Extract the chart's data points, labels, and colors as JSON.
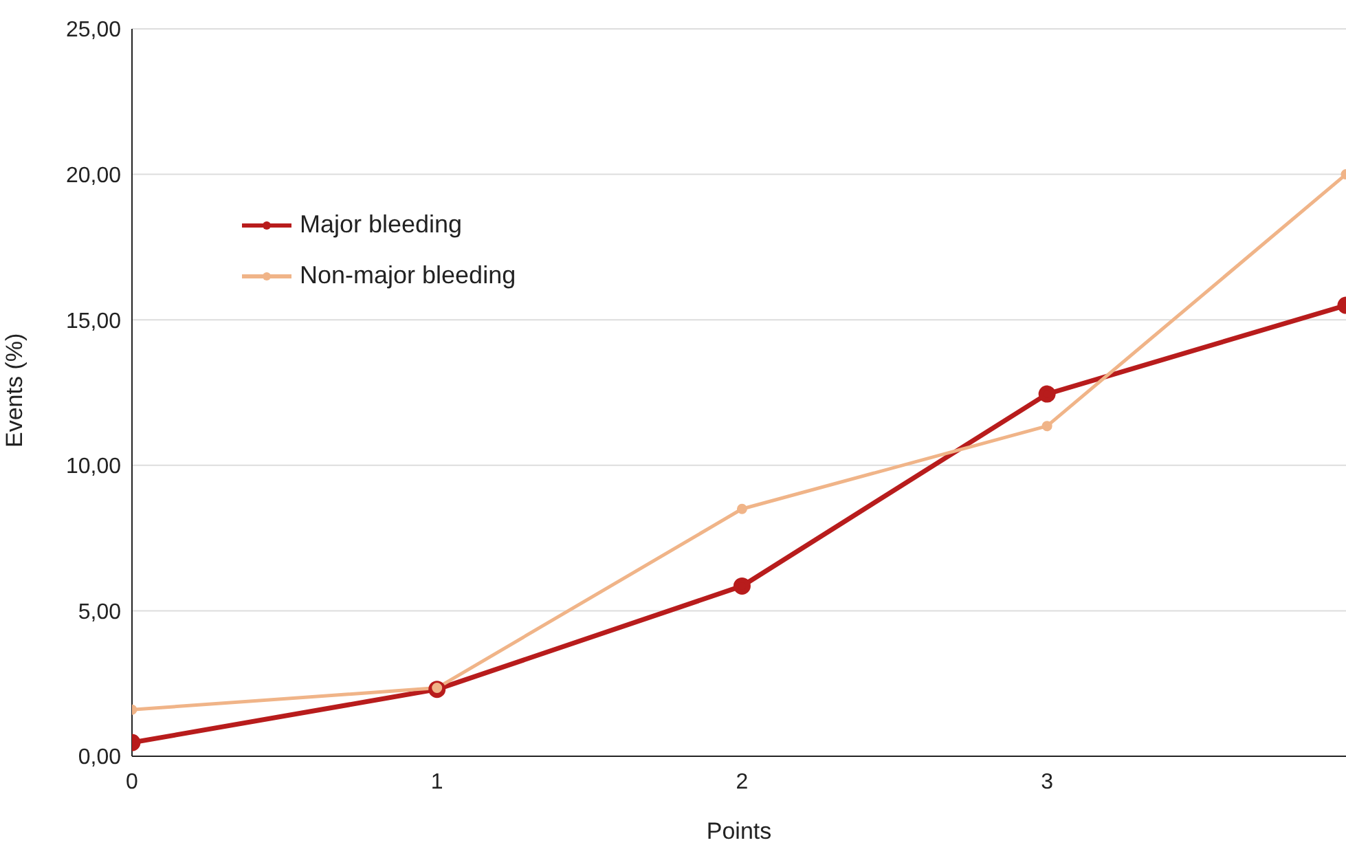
{
  "chart_data": {
    "type": "line",
    "xlabel": "Points",
    "ylabel": "Events (%)",
    "x": [
      0,
      1,
      2,
      3,
      3.98
    ],
    "series": [
      {
        "name": "Major bleeding",
        "color": "#b81c1c",
        "values": [
          0.47,
          2.3,
          5.85,
          12.45,
          15.5
        ]
      },
      {
        "name": "Non-major bleeding",
        "color": "#f0b488",
        "values": [
          1.6,
          2.35,
          8.5,
          11.35,
          20.0
        ]
      }
    ],
    "xlim": [
      0,
      3.98
    ],
    "xticks": [
      0,
      1,
      2,
      3
    ],
    "ylim": [
      0,
      25
    ],
    "yticks": [
      {
        "value": 0,
        "label": "0,00"
      },
      {
        "value": 5,
        "label": "5,00"
      },
      {
        "value": 10,
        "label": "10,00"
      },
      {
        "value": 15,
        "label": "15,00"
      },
      {
        "value": 20,
        "label": "20,00"
      },
      {
        "value": 25,
        "label": "25,00"
      }
    ],
    "grid": "y",
    "legend": "top left",
    "marker": "circle",
    "line_style": "solid"
  }
}
